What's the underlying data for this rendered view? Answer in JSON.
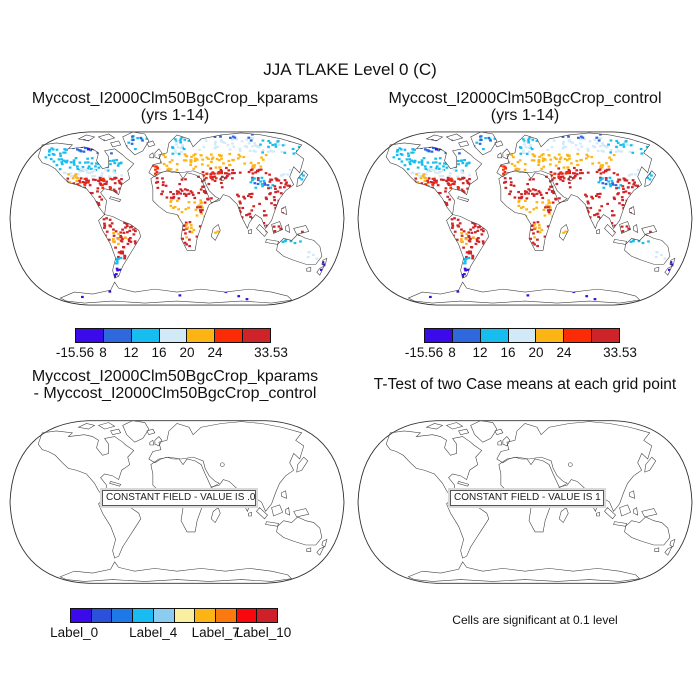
{
  "suptitle": "JJA TLAKE Level 0 (C)",
  "panels": {
    "kparams": {
      "title": "Myccost_I2000Clm50BgcCrop_kparams",
      "subtitle": "(yrs 1-14)"
    },
    "control": {
      "title": "Myccost_I2000Clm50BgcCrop_control",
      "subtitle": "(yrs 1-14)"
    },
    "diff": {
      "title": "Myccost_I2000Clm50BgcCrop_kparams",
      "subtitle": "- Myccost_I2000Clm50BgcCrop_control",
      "constant_label": "CONSTANT FIELD - VALUE IS .0"
    },
    "ttest": {
      "title": "T-Test of two Case means at each grid point",
      "constant_label": "CONSTANT FIELD - VALUE IS 1",
      "footer": "Cells are significant at 0.1 level"
    }
  },
  "chart_data": {
    "type": "heatmap",
    "subtype": "global-map-panels",
    "projection": "robinson",
    "suptitle": "JJA TLAKE Level 0 (C)",
    "panel_titles": [
      "Myccost_I2000Clm50BgcCrop_kparams (yrs 1-14)",
      "Myccost_I2000Clm50BgcCrop_control (yrs 1-14)",
      "Myccost_I2000Clm50BgcCrop_kparams - Myccost_I2000Clm50BgcCrop_control",
      "T-Test of two Case means at each grid point"
    ],
    "temperature_colorbar": {
      "units": "C",
      "min": -15.56,
      "max": 33.53,
      "colors": [
        "#3a0be8",
        "#2e68dc",
        "#18bdf0",
        "#d2e9f7",
        "#fdb515",
        "#fb2c05",
        "#ce2429"
      ],
      "labels": [
        {
          "text": "-15.56",
          "pos": 0
        },
        {
          "text": "8",
          "pos": 0.1429
        },
        {
          "text": "12",
          "pos": 0.2857
        },
        {
          "text": "16",
          "pos": 0.4286
        },
        {
          "text": "20",
          "pos": 0.5714
        },
        {
          "text": "24",
          "pos": 0.7143
        },
        {
          "text": "33.53",
          "pos": 1
        }
      ]
    },
    "diff_colorbar": {
      "colors": [
        "#3a0be8",
        "#2a50dc",
        "#1e78e8",
        "#18bcf0",
        "#8cccf0",
        "#f8f0a0",
        "#fdb515",
        "#fb7a10",
        "#f8070d",
        "#ce2029"
      ],
      "labels": [
        {
          "text": "Label_0",
          "pos": 0.02
        },
        {
          "text": "Label_4",
          "pos": 0.4
        },
        {
          "text": "Label_7",
          "pos": 0.7
        },
        {
          "text": "Label_10",
          "pos": 0.93
        }
      ]
    },
    "constant_fields": {
      "diff_value": ".0",
      "ttest_value": "1"
    },
    "significance_note": "Cells are significant at 0.1 level",
    "cell_blobs_legend": "each blob = [x, y, w, h, colorIndexIntoTemperaturePalette, cellCount] in 336x184 map coords",
    "cell_blobs": [
      [
        62,
        12,
        46,
        14,
        1,
        36
      ],
      [
        66,
        13,
        34,
        12,
        0,
        26
      ],
      [
        34,
        20,
        26,
        16,
        2,
        22
      ],
      [
        46,
        30,
        66,
        13,
        2,
        48
      ],
      [
        52,
        41,
        62,
        9,
        3,
        36
      ],
      [
        56,
        46,
        16,
        9,
        4,
        8
      ],
      [
        56,
        50,
        58,
        16,
        6,
        66
      ],
      [
        64,
        50,
        42,
        11,
        5,
        14
      ],
      [
        76,
        66,
        24,
        18,
        6,
        24
      ],
      [
        116,
        8,
        22,
        15,
        2,
        9
      ],
      [
        118,
        8,
        15,
        9,
        1,
        5
      ],
      [
        94,
        90,
        34,
        28,
        6,
        60
      ],
      [
        100,
        104,
        16,
        13,
        4,
        8
      ],
      [
        102,
        118,
        13,
        13,
        6,
        12
      ],
      [
        104,
        129,
        8,
        9,
        2,
        6
      ],
      [
        104,
        137,
        8,
        13,
        0,
        8
      ],
      [
        144,
        50,
        50,
        9,
        6,
        11
      ],
      [
        144,
        60,
        54,
        11,
        6,
        32
      ],
      [
        152,
        72,
        44,
        20,
        4,
        28
      ],
      [
        186,
        70,
        16,
        18,
        6,
        13
      ],
      [
        172,
        94,
        20,
        26,
        6,
        18
      ],
      [
        176,
        96,
        14,
        14,
        4,
        7
      ],
      [
        204,
        100,
        7,
        14,
        4,
        5
      ],
      [
        142,
        36,
        11,
        10,
        5,
        8
      ],
      [
        150,
        26,
        34,
        16,
        4,
        24
      ],
      [
        158,
        8,
        22,
        18,
        2,
        15
      ],
      [
        164,
        12,
        17,
        14,
        3,
        8
      ],
      [
        186,
        8,
        88,
        16,
        3,
        55
      ],
      [
        246,
        9,
        46,
        17,
        2,
        26
      ],
      [
        192,
        6,
        66,
        7,
        1,
        12
      ],
      [
        180,
        26,
        78,
        14,
        4,
        50
      ],
      [
        200,
        40,
        68,
        12,
        6,
        32
      ],
      [
        238,
        50,
        24,
        11,
        2,
        12
      ],
      [
        244,
        52,
        16,
        7,
        1,
        6
      ],
      [
        188,
        44,
        32,
        16,
        6,
        20
      ],
      [
        192,
        44,
        22,
        9,
        5,
        9
      ],
      [
        224,
        66,
        20,
        26,
        6,
        26
      ],
      [
        248,
        68,
        24,
        28,
        6,
        26
      ],
      [
        256,
        50,
        28,
        18,
        6,
        32
      ],
      [
        268,
        40,
        16,
        9,
        3,
        7
      ],
      [
        287,
        45,
        10,
        14,
        2,
        6
      ],
      [
        252,
        98,
        44,
        11,
        6,
        15
      ],
      [
        270,
        108,
        20,
        9,
        2,
        8
      ],
      [
        296,
        124,
        13,
        9,
        3,
        5
      ],
      [
        308,
        134,
        11,
        13,
        0,
        5
      ],
      [
        310,
        136,
        9,
        9,
        1,
        3
      ],
      [
        60,
        164,
        215,
        9,
        0,
        6
      ]
    ]
  }
}
